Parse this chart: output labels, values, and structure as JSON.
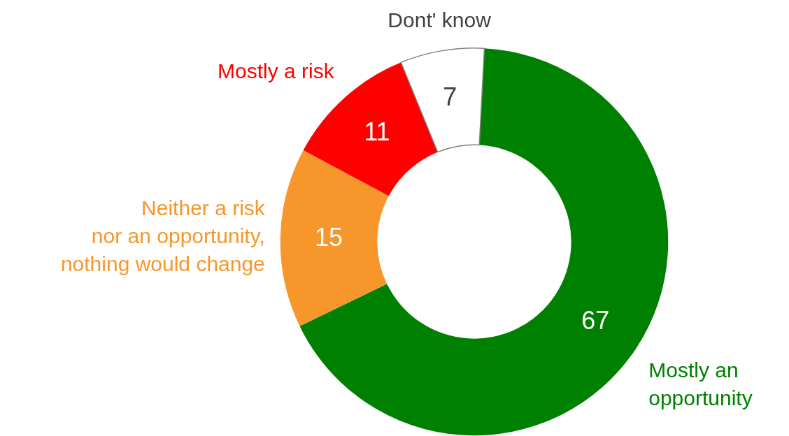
{
  "chart_data": {
    "type": "donut",
    "categories": [
      "Mostly an\nopportunity",
      "Neither a risk\nnor an opportunity,\nnothing would change",
      "Mostly a risk",
      "Dont' know"
    ],
    "values": [
      67,
      15,
      11,
      7
    ],
    "colors": [
      "#008000",
      "#f7962a",
      "#ff0000",
      "#ffffff"
    ],
    "data_labels": true,
    "legend": false
  }
}
